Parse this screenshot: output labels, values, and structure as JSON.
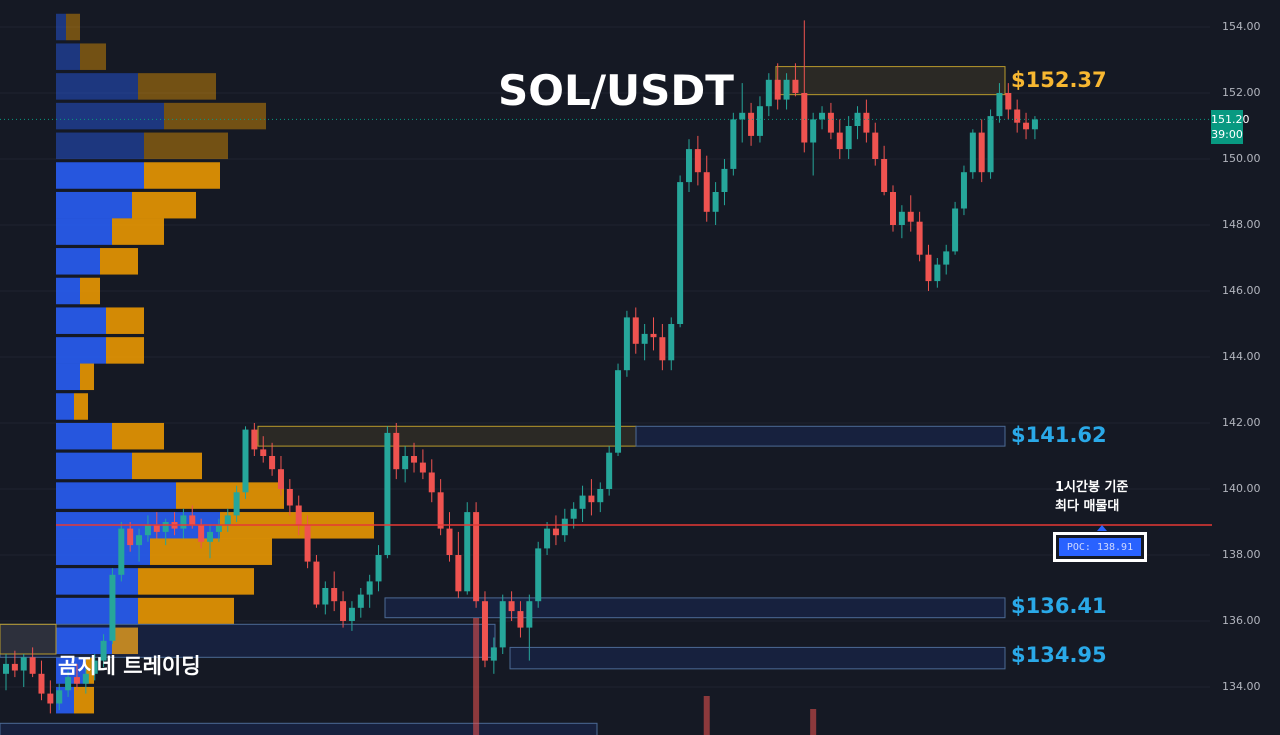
{
  "header": {
    "title": "SOL/USDT",
    "brand": "곰지네 트레이딩"
  },
  "colors": {
    "bg": "#151924",
    "up": "#26a69a",
    "down": "#ef5350",
    "gold": "#f7b731",
    "blue_label": "#2aa9e8",
    "poc_line": "#e53935",
    "vp_blue": "#2962ff",
    "vp_orange": "#f59f00"
  },
  "price_labels": [
    {
      "text": "$152.37",
      "price": 152.37,
      "color": "#f7b731"
    },
    {
      "text": "$141.62",
      "price": 141.62,
      "color": "#2aa9e8"
    },
    {
      "text": "$136.41",
      "price": 136.41,
      "color": "#2aa9e8"
    },
    {
      "text": "$134.95",
      "price": 134.95,
      "color": "#2aa9e8"
    }
  ],
  "annotation": {
    "line1": "1시간봉 기준",
    "line2": "최다 매물대"
  },
  "poc": {
    "label": "POC: 138.91",
    "price": 138.91
  },
  "current_price": {
    "value": "151.20",
    "timer": "39:00",
    "price": 151.2
  },
  "chart_data": {
    "type": "candlestick",
    "title": "SOL/USDT",
    "ylim": [
      133,
      155
    ],
    "yticks": [
      134,
      136,
      138,
      140,
      142,
      144,
      146,
      148,
      150,
      152,
      154
    ],
    "ytick_labels": [
      "134.00",
      "136.00",
      "138.00",
      "140.00",
      "142.00",
      "144.00",
      "146.00",
      "148.00",
      "150.00",
      "152.00",
      "154.00"
    ],
    "candles": [
      [
        134.4,
        135.0,
        133.9,
        134.7
      ],
      [
        134.7,
        135.1,
        134.3,
        134.5
      ],
      [
        134.5,
        135.0,
        134.0,
        134.9
      ],
      [
        134.9,
        135.2,
        134.3,
        134.4
      ],
      [
        134.4,
        134.8,
        133.6,
        133.8
      ],
      [
        133.8,
        134.2,
        133.2,
        133.5
      ],
      [
        133.5,
        134.1,
        133.3,
        133.9
      ],
      [
        133.9,
        134.5,
        133.7,
        134.3
      ],
      [
        134.3,
        134.7,
        133.9,
        134.1
      ],
      [
        134.1,
        134.6,
        133.8,
        134.4
      ],
      [
        134.4,
        135.0,
        134.2,
        134.8
      ],
      [
        134.8,
        135.6,
        134.6,
        135.4
      ],
      [
        135.4,
        137.6,
        135.3,
        137.4
      ],
      [
        137.4,
        139.0,
        137.2,
        138.8
      ],
      [
        138.8,
        139.0,
        138.1,
        138.3
      ],
      [
        138.3,
        138.8,
        137.8,
        138.6
      ],
      [
        138.6,
        139.2,
        138.4,
        138.9
      ],
      [
        138.9,
        139.3,
        138.5,
        138.7
      ],
      [
        138.7,
        139.1,
        138.3,
        139.0
      ],
      [
        139.0,
        139.3,
        138.6,
        138.8
      ],
      [
        138.8,
        139.4,
        138.5,
        139.2
      ],
      [
        139.2,
        139.5,
        138.8,
        138.9
      ],
      [
        138.9,
        139.1,
        138.2,
        138.4
      ],
      [
        138.4,
        138.9,
        137.9,
        138.7
      ],
      [
        138.7,
        139.1,
        138.4,
        138.9
      ],
      [
        138.9,
        139.4,
        138.7,
        139.2
      ],
      [
        139.2,
        140.1,
        139.0,
        139.9
      ],
      [
        139.9,
        141.9,
        139.7,
        141.8
      ],
      [
        141.8,
        142.0,
        141.0,
        141.2
      ],
      [
        141.2,
        141.6,
        140.8,
        141.0
      ],
      [
        141.0,
        141.4,
        140.4,
        140.6
      ],
      [
        140.6,
        141.0,
        139.8,
        140.0
      ],
      [
        140.0,
        140.3,
        139.2,
        139.5
      ],
      [
        139.5,
        139.8,
        138.6,
        138.9
      ],
      [
        138.9,
        139.2,
        137.6,
        137.8
      ],
      [
        137.8,
        138.0,
        136.4,
        136.5
      ],
      [
        136.5,
        137.2,
        136.2,
        137.0
      ],
      [
        137.0,
        137.5,
        136.3,
        136.6
      ],
      [
        136.6,
        136.9,
        135.8,
        136.0
      ],
      [
        136.0,
        136.6,
        135.7,
        136.4
      ],
      [
        136.4,
        137.0,
        136.1,
        136.8
      ],
      [
        136.8,
        137.4,
        136.4,
        137.2
      ],
      [
        137.2,
        138.3,
        136.9,
        138.0
      ],
      [
        138.0,
        141.9,
        137.9,
        141.7
      ],
      [
        141.7,
        142.0,
        140.3,
        140.6
      ],
      [
        140.6,
        141.3,
        140.2,
        141.0
      ],
      [
        141.0,
        141.4,
        140.5,
        140.8
      ],
      [
        140.8,
        141.2,
        140.3,
        140.5
      ],
      [
        140.5,
        140.9,
        139.6,
        139.9
      ],
      [
        139.9,
        140.3,
        138.6,
        138.8
      ],
      [
        138.8,
        139.3,
        137.8,
        138.0
      ],
      [
        138.0,
        138.7,
        136.7,
        136.9
      ],
      [
        136.9,
        139.6,
        136.8,
        139.3
      ],
      [
        139.3,
        139.6,
        136.4,
        136.6
      ],
      [
        136.6,
        136.9,
        134.6,
        134.8
      ],
      [
        134.8,
        135.5,
        134.4,
        135.2
      ],
      [
        135.2,
        136.8,
        135.0,
        136.6
      ],
      [
        136.6,
        136.9,
        136.0,
        136.3
      ],
      [
        136.3,
        136.6,
        135.5,
        135.8
      ],
      [
        135.8,
        136.8,
        134.8,
        136.6
      ],
      [
        136.6,
        138.4,
        136.4,
        138.2
      ],
      [
        138.2,
        139.0,
        138.0,
        138.8
      ],
      [
        138.8,
        139.2,
        138.3,
        138.6
      ],
      [
        138.6,
        139.4,
        138.4,
        139.1
      ],
      [
        139.1,
        139.6,
        138.8,
        139.4
      ],
      [
        139.4,
        140.1,
        139.0,
        139.8
      ],
      [
        139.8,
        140.3,
        139.2,
        139.6
      ],
      [
        139.6,
        140.2,
        139.3,
        140.0
      ],
      [
        140.0,
        141.3,
        139.8,
        141.1
      ],
      [
        141.1,
        143.8,
        141.0,
        143.6
      ],
      [
        143.6,
        145.4,
        143.4,
        145.2
      ],
      [
        145.2,
        145.5,
        144.1,
        144.4
      ],
      [
        144.4,
        145.0,
        143.9,
        144.7
      ],
      [
        144.7,
        145.2,
        144.2,
        144.6
      ],
      [
        144.6,
        145.0,
        143.6,
        143.9
      ],
      [
        143.9,
        145.2,
        143.6,
        145.0
      ],
      [
        145.0,
        149.5,
        144.9,
        149.3
      ],
      [
        149.3,
        150.6,
        149.0,
        150.3
      ],
      [
        150.3,
        150.7,
        149.2,
        149.6
      ],
      [
        149.6,
        150.1,
        148.1,
        148.4
      ],
      [
        148.4,
        149.3,
        148.0,
        149.0
      ],
      [
        149.0,
        150.0,
        148.6,
        149.7
      ],
      [
        149.7,
        151.4,
        149.5,
        151.2
      ],
      [
        151.2,
        152.3,
        150.5,
        151.4
      ],
      [
        151.4,
        151.7,
        150.4,
        150.7
      ],
      [
        150.7,
        151.9,
        150.5,
        151.6
      ],
      [
        151.6,
        152.6,
        151.3,
        152.4
      ],
      [
        152.4,
        152.9,
        151.5,
        151.8
      ],
      [
        151.8,
        152.6,
        151.5,
        152.4
      ],
      [
        152.4,
        152.9,
        151.9,
        152.0
      ],
      [
        152.0,
        154.2,
        150.2,
        150.5
      ],
      [
        150.5,
        151.4,
        149.5,
        151.2
      ],
      [
        151.2,
        151.6,
        150.9,
        151.4
      ],
      [
        151.4,
        151.7,
        150.6,
        150.8
      ],
      [
        150.8,
        151.2,
        150.0,
        150.3
      ],
      [
        150.3,
        151.3,
        150.0,
        151.0
      ],
      [
        151.0,
        151.6,
        150.6,
        151.4
      ],
      [
        151.4,
        151.8,
        150.5,
        150.8
      ],
      [
        150.8,
        151.1,
        149.8,
        150.0
      ],
      [
        150.0,
        150.4,
        148.9,
        149.0
      ],
      [
        149.0,
        149.2,
        147.8,
        148.0
      ],
      [
        148.0,
        148.6,
        147.6,
        148.4
      ],
      [
        148.4,
        148.9,
        147.8,
        148.1
      ],
      [
        148.1,
        148.4,
        146.9,
        147.1
      ],
      [
        147.1,
        147.4,
        146.0,
        146.3
      ],
      [
        146.3,
        147.0,
        146.1,
        146.8
      ],
      [
        146.8,
        147.4,
        146.5,
        147.2
      ],
      [
        147.2,
        148.7,
        147.1,
        148.5
      ],
      [
        148.5,
        149.8,
        148.3,
        149.6
      ],
      [
        149.6,
        150.9,
        149.4,
        150.8
      ],
      [
        150.8,
        151.2,
        149.3,
        149.6
      ],
      [
        149.6,
        151.5,
        149.4,
        151.3
      ],
      [
        151.3,
        152.3,
        151.1,
        152.0
      ],
      [
        152.0,
        152.3,
        151.2,
        151.5
      ],
      [
        151.5,
        151.8,
        150.8,
        151.1
      ],
      [
        151.1,
        151.4,
        150.6,
        150.9
      ],
      [
        150.9,
        151.3,
        150.6,
        151.2
      ]
    ],
    "zones": [
      {
        "type": "gold",
        "top": 152.8,
        "bottom": 151.95
      },
      {
        "type": "gold",
        "top": 141.9,
        "bottom": 141.3
      },
      {
        "type": "blue",
        "top": 141.9,
        "bottom": 141.3
      },
      {
        "type": "blue",
        "top": 136.7,
        "bottom": 136.1
      },
      {
        "type": "blue",
        "top": 135.9,
        "bottom": 134.9
      },
      {
        "type": "blue",
        "top": 135.2,
        "bottom": 134.55
      },
      {
        "type": "gold",
        "top": 135.9,
        "bottom": 135.0
      },
      {
        "type": "blue",
        "top": 132.9,
        "bottom": 132.3
      }
    ],
    "volume_profile": [
      {
        "price": 154.0,
        "buy": 10,
        "sell": 14
      },
      {
        "price": 153.1,
        "buy": 24,
        "sell": 26
      },
      {
        "price": 152.2,
        "buy": 82,
        "sell": 78
      },
      {
        "price": 151.3,
        "buy": 108,
        "sell": 102
      },
      {
        "price": 150.4,
        "buy": 88,
        "sell": 84
      },
      {
        "price": 149.5,
        "buy": 88,
        "sell": 76
      },
      {
        "price": 148.6,
        "buy": 76,
        "sell": 64
      },
      {
        "price": 147.8,
        "buy": 56,
        "sell": 52
      },
      {
        "price": 146.9,
        "buy": 44,
        "sell": 38
      },
      {
        "price": 146.0,
        "buy": 24,
        "sell": 20
      },
      {
        "price": 145.1,
        "buy": 50,
        "sell": 38
      },
      {
        "price": 144.2,
        "buy": 50,
        "sell": 38
      },
      {
        "price": 143.4,
        "buy": 24,
        "sell": 14
      },
      {
        "price": 142.5,
        "buy": 18,
        "sell": 14
      },
      {
        "price": 141.6,
        "buy": 56,
        "sell": 52
      },
      {
        "price": 140.7,
        "buy": 76,
        "sell": 70
      },
      {
        "price": 139.8,
        "buy": 120,
        "sell": 108
      },
      {
        "price": 138.9,
        "buy": 164,
        "sell": 154
      },
      {
        "price": 138.1,
        "buy": 94,
        "sell": 122
      },
      {
        "price": 137.2,
        "buy": 82,
        "sell": 116
      },
      {
        "price": 136.3,
        "buy": 82,
        "sell": 96
      },
      {
        "price": 135.4,
        "buy": 56,
        "sell": 26
      },
      {
        "price": 134.5,
        "buy": 30,
        "sell": 8
      },
      {
        "price": 133.6,
        "buy": 18,
        "sell": 20
      }
    ],
    "volume_spikes": [
      {
        "candle": 53,
        "value": 0.9
      },
      {
        "candle": 79,
        "value": 0.3
      },
      {
        "candle": 91,
        "value": 0.2
      }
    ]
  }
}
